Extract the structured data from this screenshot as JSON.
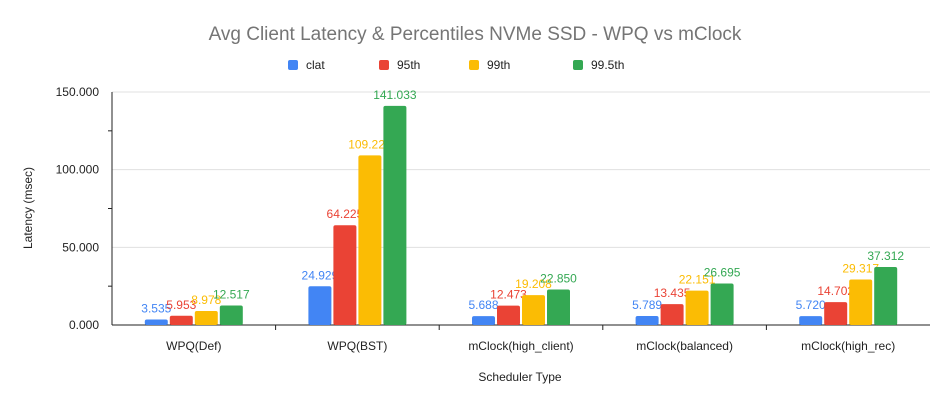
{
  "chart_data": {
    "type": "bar",
    "title": "Avg Client Latency & Percentiles NVMe SSD - WPQ vs mClock",
    "xlabel": "Scheduler Type",
    "ylabel": "Latency (msec)",
    "ylim": [
      0,
      150
    ],
    "yticks": [
      "0.000",
      "50.000",
      "100.000",
      "150.000"
    ],
    "grid": true,
    "legend_position": "top",
    "categories": [
      "WPQ(Def)",
      "WPQ(BST)",
      "mClock(high_client)",
      "mClock(balanced)",
      "mClock(high_rec)"
    ],
    "series": [
      {
        "name": "clat",
        "color": "#4285f4",
        "values": [
          3.535,
          24.929,
          5.688,
          5.789,
          5.72
        ],
        "labels": [
          "3.535",
          "24.929",
          "5.688",
          "5.789",
          "5.720"
        ]
      },
      {
        "name": "95th",
        "color": "#ea4335",
        "values": [
          5.953,
          64.225,
          12.473,
          13.435,
          14.702
        ],
        "labels": [
          "5.953",
          "64.225",
          "12.473",
          "13.435",
          "14.702"
        ]
      },
      {
        "name": "99th",
        "color": "#fbbc04",
        "values": [
          8.978,
          109.227,
          19.208,
          22.151,
          29.317
        ],
        "labels": [
          "8.978",
          "109.227",
          "19.208",
          "22.151",
          "29.317"
        ]
      },
      {
        "name": "99.5th",
        "color": "#34a853",
        "values": [
          12.517,
          141.033,
          22.85,
          26.695,
          37.312
        ],
        "labels": [
          "12.517",
          "141.033",
          "22.850",
          "26.695",
          "37.312"
        ]
      }
    ]
  }
}
